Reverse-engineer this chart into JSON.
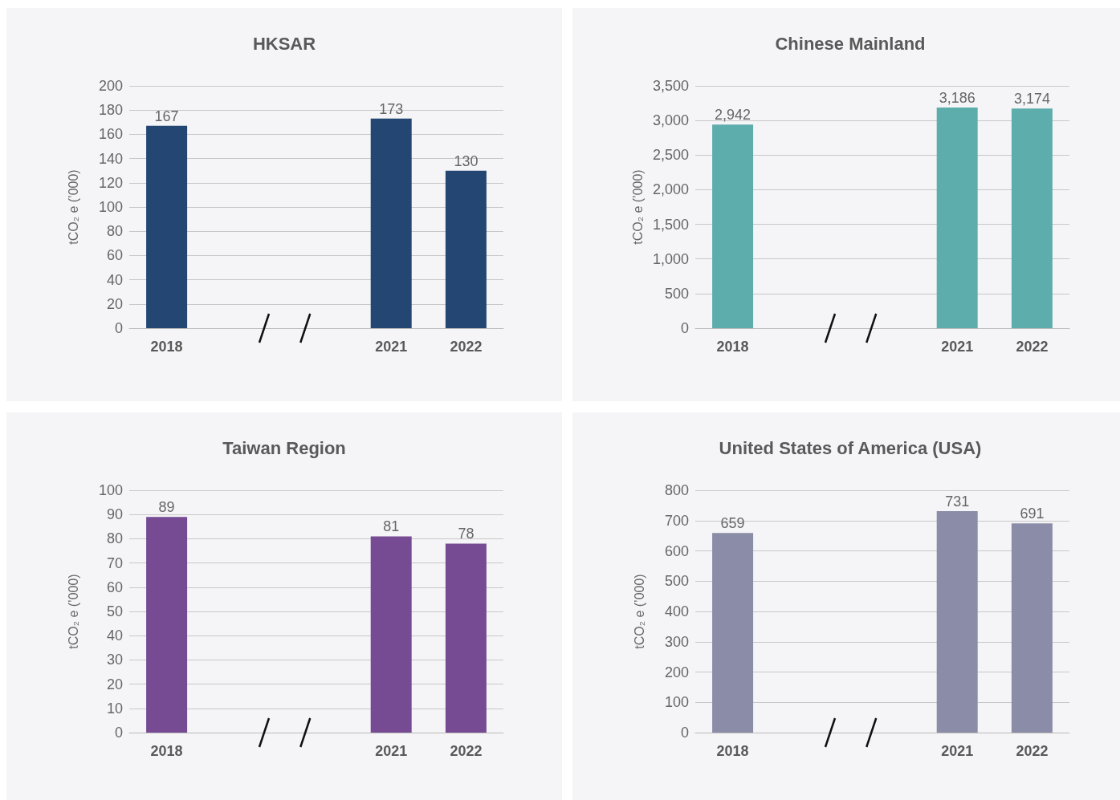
{
  "chart_data": [
    {
      "type": "bar",
      "title": "HKSAR",
      "ylabel": "tCO₂ e (’000)",
      "categories": [
        "2018",
        null,
        null,
        "2021",
        "2022"
      ],
      "values": [
        167,
        null,
        null,
        173,
        130
      ],
      "value_labels": [
        "167",
        null,
        null,
        "173",
        "130"
      ],
      "color": "#234672",
      "ylim": [
        0,
        200
      ],
      "yticks": [
        0,
        20,
        40,
        60,
        80,
        100,
        120,
        140,
        160,
        180,
        200
      ],
      "grid": "y"
    },
    {
      "type": "bar",
      "title": "Chinese Mainland",
      "ylabel": "tCO₂ e (’000)",
      "categories": [
        "2018",
        null,
        null,
        "2021",
        "2022"
      ],
      "values": [
        2942,
        null,
        null,
        3186,
        3174
      ],
      "value_labels": [
        "2,942",
        null,
        null,
        "3,186",
        "3,174"
      ],
      "color": "#5dadad",
      "ylim": [
        0,
        3500
      ],
      "yticks": [
        0,
        500,
        {
          "value": 1000,
          "label": "1,000"
        },
        {
          "value": 1500,
          "label": "1,500"
        },
        {
          "value": 2000,
          "label": "2,000"
        },
        {
          "value": 2500,
          "label": "2,500"
        },
        {
          "value": 3000,
          "label": "3,000"
        },
        {
          "value": 3500,
          "label": "3,500"
        }
      ],
      "grid": "y"
    },
    {
      "type": "bar",
      "title": "Taiwan Region",
      "ylabel": "tCO₂ e (’000)",
      "categories": [
        "2018",
        null,
        null,
        "2021",
        "2022"
      ],
      "values": [
        89,
        null,
        null,
        81,
        78
      ],
      "value_labels": [
        "89",
        null,
        null,
        "81",
        "78"
      ],
      "color": "#764b93",
      "ylim": [
        0,
        100
      ],
      "yticks": [
        0,
        10,
        20,
        30,
        40,
        50,
        60,
        70,
        80,
        90,
        100
      ],
      "grid": "y"
    },
    {
      "type": "bar",
      "title": "United States of America (USA)",
      "ylabel": "tCO₂ e (’000)",
      "categories": [
        "2018",
        null,
        null,
        "2021",
        "2022"
      ],
      "values": [
        659,
        null,
        null,
        731,
        691
      ],
      "value_labels": [
        "659",
        null,
        null,
        "731",
        "691"
      ],
      "color": "#8a8ca8",
      "ylim": [
        0,
        800
      ],
      "yticks": [
        0,
        100,
        200,
        300,
        400,
        500,
        600,
        700,
        800
      ],
      "grid": "y"
    }
  ]
}
